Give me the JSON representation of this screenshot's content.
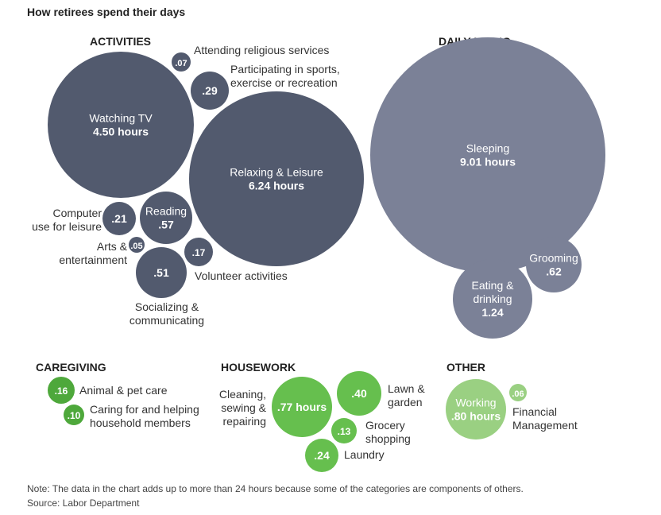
{
  "title": "How retirees spend their days",
  "note": "Note: The data in the chart adds up to more than 24 hours because some of the categories are components of others.",
  "source": "Source: Labor Department",
  "colors": {
    "activities": "#525a6e",
    "daily_living": "#7b8197",
    "caregiving": "#4ea83b",
    "housework": "#66bf4e",
    "other_working": "#9ad082",
    "other_financial": "#9ad082"
  },
  "sections": {
    "activities": "ACTIVITIES",
    "daily_living": "DAILY LIVING",
    "caregiving": "CAREGIVING",
    "housework": "HOUSEWORK",
    "other": "OTHER"
  },
  "chart_data": {
    "type": "bubble",
    "unit": "hours",
    "categories": [
      {
        "group": "ACTIVITIES",
        "name": "Watching TV",
        "value": 4.5,
        "value_label": "4.50 hours"
      },
      {
        "group": "ACTIVITIES",
        "name": "Relaxing & Leisure",
        "value": 6.24,
        "value_label": "6.24 hours"
      },
      {
        "group": "ACTIVITIES",
        "name": "Attending religious services",
        "value": 0.07,
        "value_label": ".07"
      },
      {
        "group": "ACTIVITIES",
        "name": "Participating in sports, exercise or recreation",
        "value": 0.29,
        "value_label": ".29"
      },
      {
        "group": "ACTIVITIES",
        "name": "Computer use for leisure",
        "value": 0.21,
        "value_label": ".21"
      },
      {
        "group": "ACTIVITIES",
        "name": "Reading",
        "value": 0.57,
        "value_label": ".57"
      },
      {
        "group": "ACTIVITIES",
        "name": "Arts & entertainment",
        "value": 0.05,
        "value_label": ".05"
      },
      {
        "group": "ACTIVITIES",
        "name": "Volunteer activities",
        "value": 0.17,
        "value_label": ".17"
      },
      {
        "group": "ACTIVITIES",
        "name": "Socializing & communicating",
        "value": 0.51,
        "value_label": ".51"
      },
      {
        "group": "DAILY LIVING",
        "name": "Sleeping",
        "value": 9.01,
        "value_label": "9.01 hours"
      },
      {
        "group": "DAILY LIVING",
        "name": "Grooming",
        "value": 0.62,
        "value_label": ".62"
      },
      {
        "group": "DAILY LIVING",
        "name": "Eating & drinking",
        "value": 1.24,
        "value_label": "1.24"
      },
      {
        "group": "CAREGIVING",
        "name": "Animal & pet care",
        "value": 0.16,
        "value_label": ".16"
      },
      {
        "group": "CAREGIVING",
        "name": "Caring for and helping household members",
        "value": 0.1,
        "value_label": ".10"
      },
      {
        "group": "HOUSEWORK",
        "name": "Cleaning, sewing & repairing",
        "value": 0.77,
        "value_label": ".77 hours"
      },
      {
        "group": "HOUSEWORK",
        "name": "Lawn & garden",
        "value": 0.4,
        "value_label": ".40"
      },
      {
        "group": "HOUSEWORK",
        "name": "Grocery shopping",
        "value": 0.13,
        "value_label": ".13"
      },
      {
        "group": "HOUSEWORK",
        "name": "Laundry",
        "value": 0.24,
        "value_label": ".24"
      },
      {
        "group": "OTHER",
        "name": "Working",
        "value": 0.8,
        "value_label": ".80 hours"
      },
      {
        "group": "OTHER",
        "name": "Financial Management",
        "value": 0.06,
        "value_label": ".06"
      }
    ]
  },
  "bubbles": [
    {
      "key": "watching-tv",
      "value": 4.5,
      "color": "activities",
      "value_text": "4.50 hours",
      "inside": [
        "Watching TV"
      ],
      "outside": []
    },
    {
      "key": "relaxing-leisure",
      "value": 6.24,
      "color": "activities",
      "value_text": "6.24 hours",
      "inside": [
        "Relaxing & Leisure"
      ],
      "outside": []
    },
    {
      "key": "religious-services",
      "value": 0.07,
      "color": "activities",
      "value_text": ".07",
      "inside": [],
      "outside": [
        "Attending religious services"
      ]
    },
    {
      "key": "sports-exercise",
      "value": 0.29,
      "color": "activities",
      "value_text": ".29",
      "inside": [],
      "outside": [
        "Participating in sports,",
        "exercise or recreation"
      ]
    },
    {
      "key": "computer-use",
      "value": 0.21,
      "color": "activities",
      "value_text": ".21",
      "inside": [],
      "outside": [
        "Computer",
        "use for leisure"
      ]
    },
    {
      "key": "reading",
      "value": 0.57,
      "color": "activities",
      "value_text": ".57",
      "inside": [
        "Reading"
      ],
      "outside": []
    },
    {
      "key": "arts-entertainment",
      "value": 0.05,
      "color": "activities",
      "value_text": ".05",
      "inside": [],
      "outside": [
        "Arts &",
        "entertainment"
      ]
    },
    {
      "key": "volunteer",
      "value": 0.17,
      "color": "activities",
      "value_text": ".17",
      "inside": [],
      "outside": [
        "Volunteer activities"
      ]
    },
    {
      "key": "socializing",
      "value": 0.51,
      "color": "activities",
      "value_text": ".51",
      "inside": [],
      "outside": [
        "Socializing &",
        "communicating"
      ]
    },
    {
      "key": "sleeping",
      "value": 9.01,
      "color": "daily_living",
      "value_text": "9.01 hours",
      "inside": [
        "Sleeping"
      ],
      "outside": []
    },
    {
      "key": "grooming",
      "value": 0.62,
      "color": "daily_living",
      "value_text": ".62",
      "inside": [
        "Grooming"
      ],
      "outside": []
    },
    {
      "key": "eating-drinking",
      "value": 1.24,
      "color": "daily_living",
      "value_text": "1.24",
      "inside": [
        "Eating &",
        "drinking"
      ],
      "outside": []
    },
    {
      "key": "pet-care",
      "value": 0.16,
      "color": "caregiving",
      "value_text": ".16",
      "inside": [],
      "outside": [
        "Animal & pet care"
      ]
    },
    {
      "key": "household-members",
      "value": 0.1,
      "color": "caregiving",
      "value_text": ".10",
      "inside": [],
      "outside": [
        "Caring for and helping",
        "household members"
      ]
    },
    {
      "key": "cleaning",
      "value": 0.77,
      "color": "housework",
      "value_text": ".77 hours",
      "inside": [],
      "outside": [
        "Cleaning,",
        "sewing &",
        "repairing"
      ]
    },
    {
      "key": "lawn-garden",
      "value": 0.4,
      "color": "housework",
      "value_text": ".40",
      "inside": [],
      "outside": [
        "Lawn &",
        "garden"
      ]
    },
    {
      "key": "grocery",
      "value": 0.13,
      "color": "housework",
      "value_text": ".13",
      "inside": [],
      "outside": [
        "Grocery",
        "shopping"
      ]
    },
    {
      "key": "laundry",
      "value": 0.24,
      "color": "housework",
      "value_text": ".24",
      "inside": [],
      "outside": [
        "Laundry"
      ]
    },
    {
      "key": "working",
      "value": 0.8,
      "color": "other_working",
      "value_text": ".80 hours",
      "inside": [
        "Working"
      ],
      "outside": []
    },
    {
      "key": "financial",
      "value": 0.06,
      "color": "other_financial",
      "value_text": ".06",
      "inside": [],
      "outside": [
        "Financial",
        "Management"
      ]
    }
  ]
}
